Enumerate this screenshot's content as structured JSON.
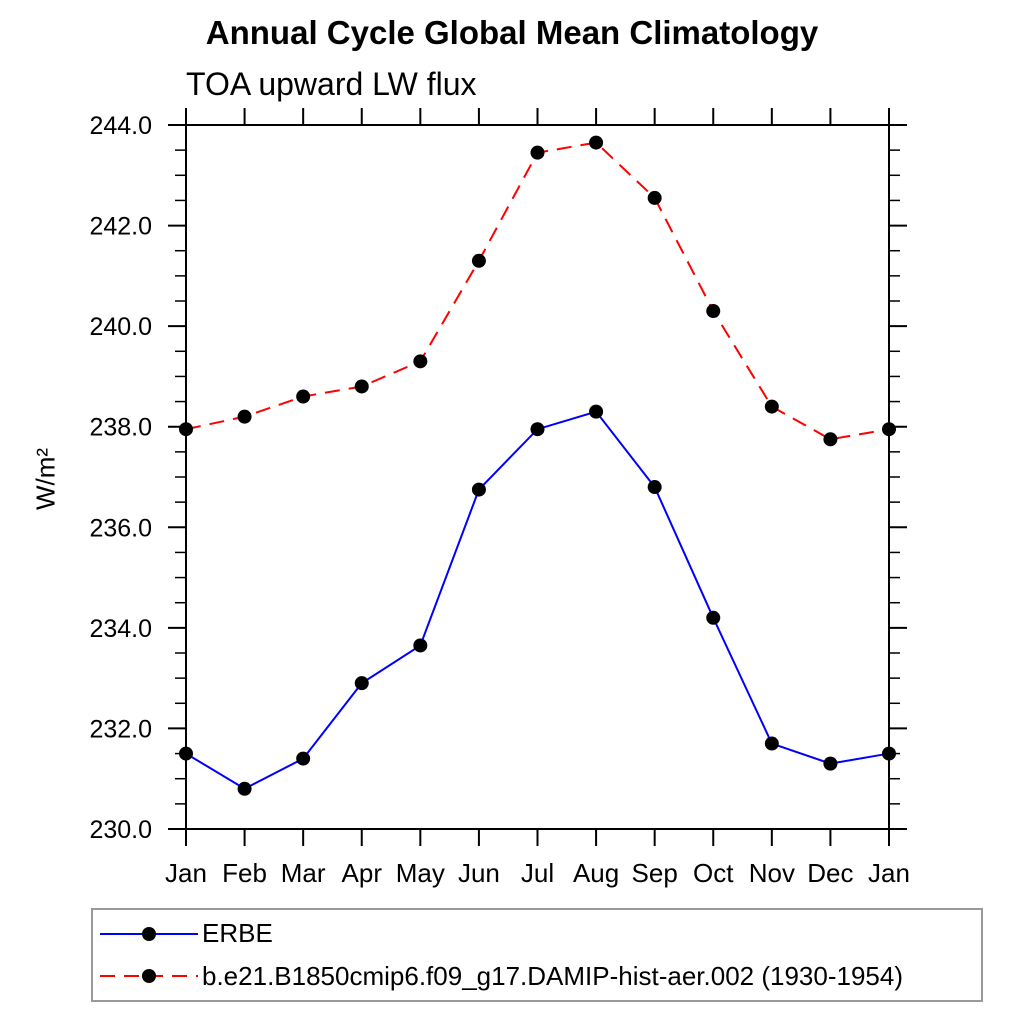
{
  "header": {
    "title": "Annual Cycle Global Mean Climatology",
    "subtitle": "TOA upward LW flux"
  },
  "axes": {
    "y": {
      "label": "W/m²",
      "min": 230.0,
      "max": 244.0,
      "major_step": 2.0,
      "minor_step": 0.5,
      "tick_labels": [
        "230.0",
        "232.0",
        "234.0",
        "236.0",
        "238.0",
        "240.0",
        "242.0",
        "244.0"
      ]
    },
    "x": {
      "tick_labels": [
        "Jan",
        "Feb",
        "Mar",
        "Apr",
        "May",
        "Jun",
        "Jul",
        "Aug",
        "Sep",
        "Oct",
        "Nov",
        "Dec",
        "Jan"
      ]
    }
  },
  "chart_data": {
    "type": "line",
    "title": "Annual Cycle Global Mean Climatology",
    "subtitle": "TOA upward LW flux",
    "xlabel": "",
    "ylabel": "W/m²",
    "ylim": [
      230.0,
      244.0
    ],
    "y_major_tick_step": 2.0,
    "y_minor_tick_step": 0.5,
    "grid": false,
    "legend_position": "bottom-left box",
    "categories": [
      "Jan",
      "Feb",
      "Mar",
      "Apr",
      "May",
      "Jun",
      "Jul",
      "Aug",
      "Sep",
      "Oct",
      "Nov",
      "Dec",
      "Jan"
    ],
    "series": [
      {
        "name": "ERBE",
        "color": "#0000ff",
        "line_style": "solid",
        "marker": "filled-circle",
        "marker_color": "#000000",
        "values": [
          231.5,
          230.8,
          231.4,
          232.9,
          233.65,
          236.75,
          237.95,
          238.3,
          236.8,
          234.2,
          231.7,
          231.3,
          231.5
        ]
      },
      {
        "name": "b.e21.B1850cmip6.f09_g17.DAMIP-hist-aer.002 (1930-1954)",
        "color": "#ff0000",
        "line_style": "dashed",
        "marker": "filled-circle",
        "marker_color": "#000000",
        "values": [
          237.95,
          238.2,
          238.6,
          238.8,
          239.3,
          241.3,
          243.45,
          243.65,
          242.55,
          240.3,
          238.4,
          237.75,
          237.95
        ]
      }
    ]
  },
  "colors": {
    "axis": "#000000",
    "erbe_line": "#0000ff",
    "model_line": "#ff0000",
    "marker": "#000000",
    "legend_border": "#999999",
    "background": "#ffffff"
  }
}
